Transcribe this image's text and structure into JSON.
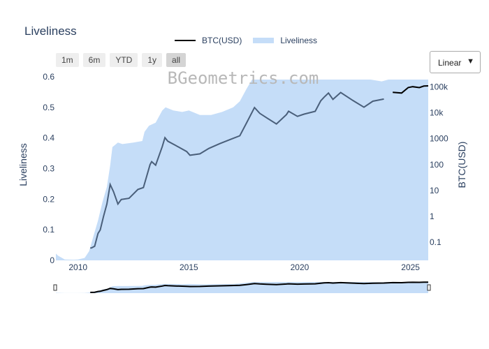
{
  "title": "Liveliness",
  "legend": {
    "btc_label": "BTC(USD)",
    "liveliness_label": "Liveliness"
  },
  "range_buttons": [
    "1m",
    "6m",
    "YTD",
    "1y",
    "all"
  ],
  "active_range": "all",
  "scale_select": {
    "value": "Linear"
  },
  "watermark": "BGeometrics.com",
  "colors": {
    "price_line": "#4a5f7a",
    "price_line_recent": "#000000",
    "liveliness_fill": "#c5ddf8",
    "text": "#2a3f5f"
  },
  "chart_data": {
    "type": "line",
    "xlabel": "",
    "ylabel": "Liveliness",
    "y2label": "BTC(USD)",
    "xlim": [
      2009.0,
      2025.8
    ],
    "ylim": [
      0,
      0.6
    ],
    "y2_scale": "log",
    "y2lim": [
      0.02,
      150000
    ],
    "x_ticks": [
      "2010",
      "2015",
      "2020",
      "2025"
    ],
    "y_ticks": [
      "0",
      "0.1",
      "0.2",
      "0.3",
      "0.4",
      "0.5",
      "0.6"
    ],
    "y2_ticks": [
      "0.1",
      "1",
      "10",
      "100",
      "1000",
      "10k",
      "100k"
    ],
    "series": [
      {
        "name": "Liveliness",
        "style": "area",
        "x": [
          2009.0,
          2009.1,
          2009.4,
          2009.8,
          2010.0,
          2010.3,
          2010.5,
          2010.7,
          2010.9,
          2011.1,
          2011.3,
          2011.45,
          2011.55,
          2011.8,
          2012.0,
          2012.5,
          2012.9,
          2013.0,
          2013.2,
          2013.5,
          2013.8,
          2013.95,
          2014.3,
          2014.7,
          2015.0,
          2015.5,
          2016.0,
          2016.5,
          2017.0,
          2017.3,
          2017.6,
          2017.85,
          2018.0,
          2018.3,
          2018.7,
          2019.0,
          2019.3,
          2019.6,
          2020.0,
          2020.4,
          2020.8,
          2021.0,
          2021.3,
          2021.6,
          2021.9,
          2022.3,
          2022.8,
          2023.2,
          2023.7,
          2024.0,
          2024.3,
          2024.7,
          2025.0,
          2025.4,
          2025.8
        ],
        "values": [
          0.022,
          0.015,
          0.003,
          0.002,
          0.003,
          0.008,
          0.03,
          0.08,
          0.13,
          0.19,
          0.24,
          0.31,
          0.37,
          0.385,
          0.38,
          0.385,
          0.39,
          0.42,
          0.44,
          0.45,
          0.49,
          0.5,
          0.49,
          0.485,
          0.49,
          0.475,
          0.475,
          0.485,
          0.5,
          0.52,
          0.56,
          0.6,
          0.61,
          0.6,
          0.595,
          0.6,
          0.61,
          0.605,
          0.6,
          0.6,
          0.61,
          0.62,
          0.615,
          0.61,
          0.61,
          0.605,
          0.6,
          0.595,
          0.585,
          0.6,
          0.61,
          0.61,
          0.615,
          0.61,
          0.615
        ]
      },
      {
        "name": "BTC(USD)",
        "style": "line",
        "x": [
          2010.55,
          2010.6,
          2010.75,
          2010.9,
          2011.0,
          2011.15,
          2011.3,
          2011.45,
          2011.6,
          2011.8,
          2011.95,
          2012.3,
          2012.7,
          2012.95,
          2013.25,
          2013.32,
          2013.5,
          2013.8,
          2013.92,
          2014.05,
          2014.4,
          2014.9,
          2015.05,
          2015.5,
          2015.9,
          2016.4,
          2016.9,
          2017.3,
          2017.6,
          2017.96,
          2018.2,
          2018.5,
          2018.95,
          2019.4,
          2019.5,
          2019.9,
          2020.2,
          2020.7,
          2020.95,
          2021.1,
          2021.3,
          2021.5,
          2021.85,
          2022.4,
          2022.9,
          2023.3,
          2023.8,
          2024.2,
          2024.6,
          2024.9,
          2025.1,
          2025.4,
          2025.6,
          2025.8
        ],
        "values": [
          0.06,
          0.06,
          0.07,
          0.22,
          0.3,
          1.0,
          3.0,
          17,
          9,
          3,
          4.5,
          5,
          11,
          13,
          100,
          130,
          95,
          500,
          1100,
          800,
          550,
          320,
          230,
          260,
          420,
          650,
          960,
          1300,
          4000,
          16000,
          9500,
          6500,
          3700,
          8500,
          11500,
          7300,
          8900,
          11400,
          29000,
          40000,
          58000,
          33000,
          61000,
          30000,
          16500,
          28000,
          34000,
          62000,
          58000,
          95000,
          102000,
          94000,
          108000,
          110000
        ]
      }
    ]
  }
}
